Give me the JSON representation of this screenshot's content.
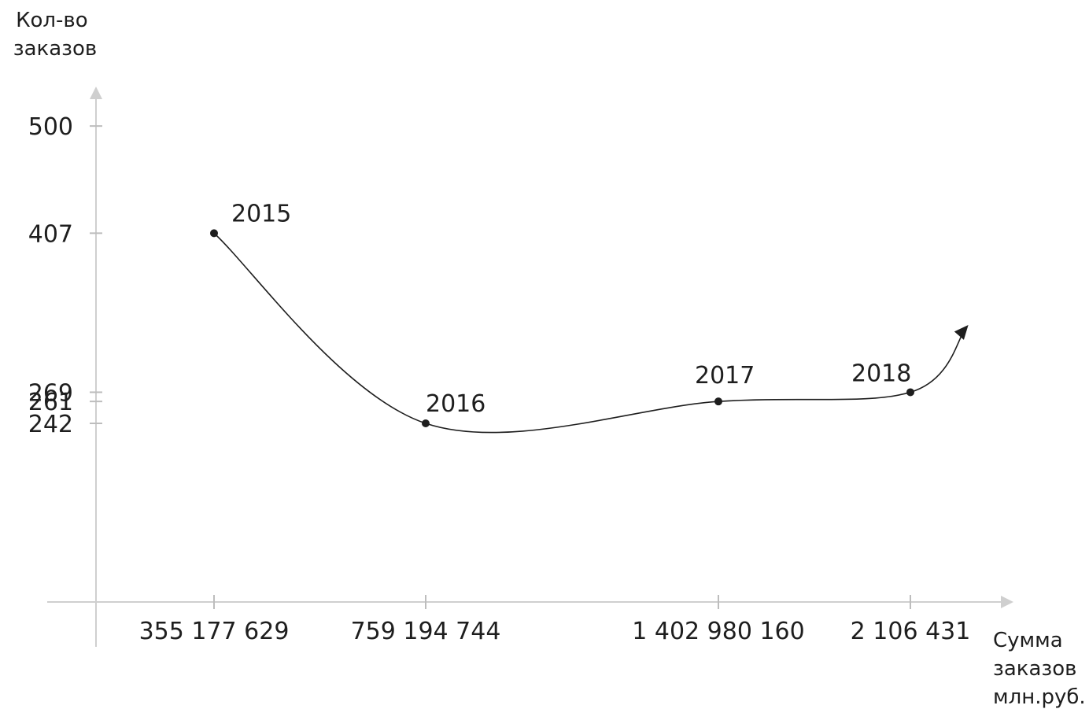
{
  "chart_data": {
    "type": "line",
    "xlabel": [
      "Сумма",
      "заказов",
      "млн.руб."
    ],
    "ylabel": [
      "Кол-во",
      "заказов"
    ],
    "x_ticks": [
      "355 177 629",
      "759 194 744",
      "1 402 980 160",
      "2 106 431"
    ],
    "y_ticks": [
      500,
      407,
      269,
      261,
      242
    ],
    "series": [
      {
        "points": [
          {
            "label": "2015",
            "x": "355 177 629",
            "y": 407
          },
          {
            "label": "2016",
            "x": "759 194 744",
            "y": 242
          },
          {
            "label": "2017",
            "x": "1 402 980 160",
            "y": 261
          },
          {
            "label": "2018",
            "x": "2 106 431",
            "y": 269
          }
        ]
      }
    ],
    "ylim": [
      0,
      550
    ],
    "grid": false,
    "legend": "none"
  }
}
